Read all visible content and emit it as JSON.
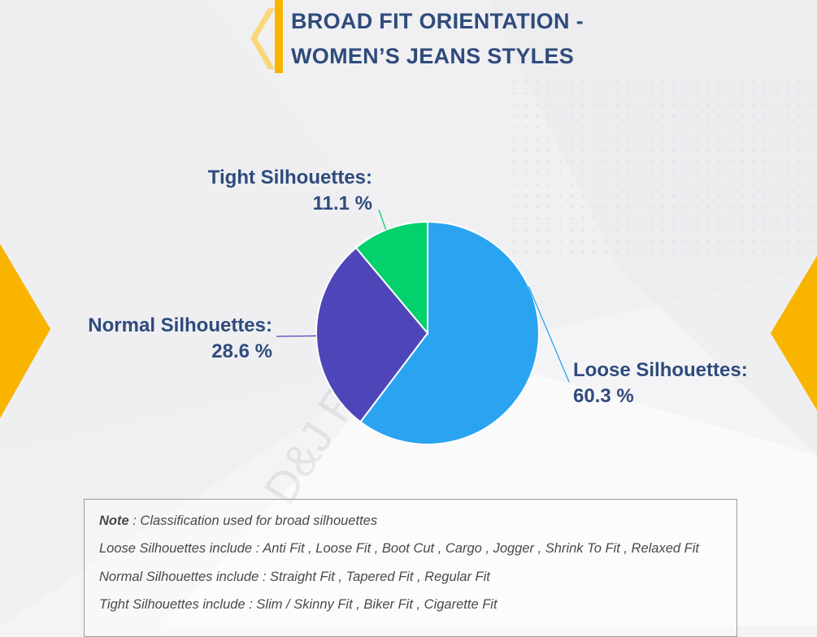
{
  "header": {
    "title_line1": "BROAD FIT ORIENTATION -",
    "title_line2": "WOMEN’S JEANS STYLES"
  },
  "watermark": "D&J Reports",
  "colors": {
    "accent": "#f9b400",
    "title": "#2f4b7c",
    "label": "#2f4b7c"
  },
  "chart_data": {
    "type": "pie",
    "title": "BROAD FIT ORIENTATION - WOMEN’S JEANS STYLES",
    "slices": [
      {
        "name": "Loose Silhouettes:",
        "value": 60.3,
        "label": "60.3 %",
        "color": "#2aa4f0"
      },
      {
        "name": "Normal Silhouettes:",
        "value": 28.6,
        "label": "28.6 %",
        "color": "#4e46b8"
      },
      {
        "name": "Tight Silhouettes:",
        "value": 11.1,
        "label": "11.1 %",
        "color": "#02d16c"
      }
    ],
    "start_angle_deg": 0,
    "direction": "clockwise",
    "legend": "none"
  },
  "note": {
    "heading": "Note",
    "heading_rest": " : Classification used for broad silhouettes",
    "loose_prefix": "Loose Silhouettes include",
    "loose_rest": " : Anti Fit , Loose Fit , Boot Cut , Cargo , Jogger , Shrink To Fit , Relaxed Fit",
    "normal_prefix": "Normal Silhouettes include",
    "normal_rest": " : Straight Fit , Tapered Fit , Regular Fit",
    "tight_prefix": "Tight Silhouettes include",
    "tight_rest": " : Slim / Skinny Fit , Biker Fit , Cigarette Fit"
  }
}
